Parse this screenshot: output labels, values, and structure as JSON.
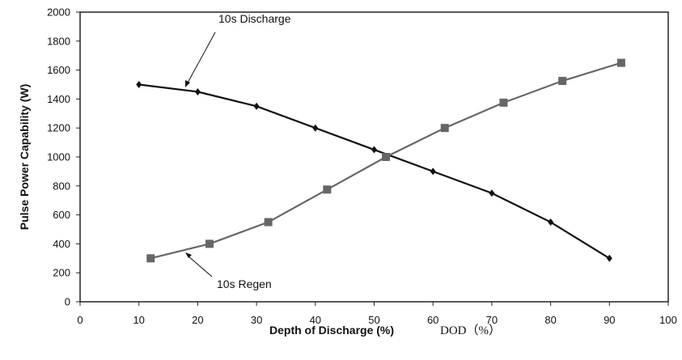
{
  "chart_data": {
    "type": "line",
    "title": "",
    "xlabel": "Depth of Discharge (%)",
    "xlabel_secondary": "DOD（%）",
    "ylabel": "Pulse Power Capability (W)",
    "xlim": [
      0,
      100
    ],
    "ylim": [
      0,
      2000
    ],
    "xticks": [
      "0",
      "10",
      "20",
      "30",
      "40",
      "50",
      "60",
      "70",
      "80",
      "90",
      "100"
    ],
    "yticks": [
      "0",
      "200",
      "400",
      "600",
      "800",
      "1000",
      "1200",
      "1400",
      "1600",
      "1800",
      "2000"
    ],
    "grid": false,
    "legend": "none",
    "series": [
      {
        "name": "10s Discharge",
        "color": "#111111",
        "marker": "diamond",
        "x": [
          10,
          20,
          30,
          40,
          50,
          60,
          70,
          80,
          90
        ],
        "y": [
          1500,
          1450,
          1350,
          1200,
          1050,
          900,
          750,
          550,
          300
        ]
      },
      {
        "name": "10s Regen",
        "color": "#666666",
        "marker": "square",
        "x": [
          12,
          22,
          32,
          42,
          52,
          62,
          72,
          82,
          92
        ],
        "y": [
          300,
          400,
          550,
          775,
          1000,
          1200,
          1375,
          1525,
          1650
        ]
      }
    ]
  }
}
